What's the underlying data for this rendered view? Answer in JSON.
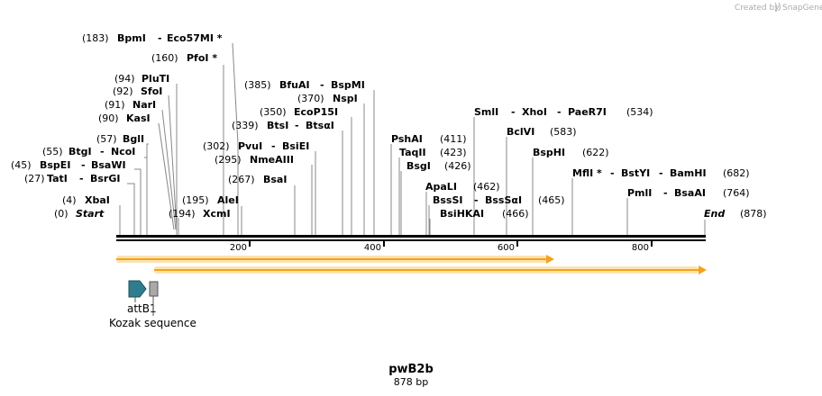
{
  "credit": {
    "text": "Created by",
    "brand": "SnapGene"
  },
  "sequence": {
    "name": "pwB2b",
    "length_text": "878 bp",
    "length": 878
  },
  "start_label": {
    "pos": "(0)",
    "name": "Start"
  },
  "end_label": {
    "name": "End",
    "pos": "(878)"
  },
  "ruler": {
    "ticks": [
      "200",
      "400",
      "600",
      "800"
    ]
  },
  "sites": [
    {
      "id": "xbai",
      "pos": "(4)",
      "names": [
        "XbaI"
      ]
    },
    {
      "id": "tati",
      "pos": "(27)",
      "names": [
        "TatI",
        "BsrGI"
      ]
    },
    {
      "id": "bspei",
      "pos": "(45)",
      "names": [
        "BspEI",
        "BsaWI"
      ]
    },
    {
      "id": "btgi",
      "pos": "(55)",
      "names": [
        "BtgI",
        "NcoI"
      ]
    },
    {
      "id": "bgli",
      "pos": "(57)",
      "names": [
        "BglI"
      ]
    },
    {
      "id": "kasi",
      "pos": "(90)",
      "names": [
        "KasI"
      ]
    },
    {
      "id": "nari",
      "pos": "(91)",
      "names": [
        "NarI"
      ]
    },
    {
      "id": "sfoi",
      "pos": "(92)",
      "names": [
        "SfoI"
      ]
    },
    {
      "id": "pluti",
      "pos": "(94)",
      "names": [
        "PluTI"
      ]
    },
    {
      "id": "pfoi",
      "pos": "(160)",
      "names": [
        "PfoI *"
      ]
    },
    {
      "id": "bpmi",
      "pos": "(183)",
      "names": [
        "BpmI",
        "Eco57MI *"
      ]
    },
    {
      "id": "xcmi",
      "pos": "(194)",
      "names": [
        "XcmI"
      ]
    },
    {
      "id": "alei",
      "pos": "(195)",
      "names": [
        "AleI"
      ]
    },
    {
      "id": "bsai",
      "pos": "(267)",
      "names": [
        "BsaI"
      ]
    },
    {
      "id": "nmeaiii",
      "pos": "(295)",
      "names": [
        "NmeAIII"
      ]
    },
    {
      "id": "pvui",
      "pos": "(302)",
      "names": [
        "PvuI",
        "BsiEI"
      ]
    },
    {
      "id": "btsi",
      "pos": "(339)",
      "names": [
        "BtsI",
        "BtsαI"
      ]
    },
    {
      "id": "ecop15i",
      "pos": "(350)",
      "names": [
        "EcoP15I"
      ]
    },
    {
      "id": "nspi",
      "pos": "(370)",
      "names": [
        "NspI"
      ]
    },
    {
      "id": "bfuai",
      "pos": "(385)",
      "names": [
        "BfuAI",
        "BspMI"
      ]
    },
    {
      "id": "pshai",
      "pos": "(411)",
      "names": [
        "PshAI"
      ]
    },
    {
      "id": "taqii",
      "pos": "(423)",
      "names": [
        "TaqII"
      ]
    },
    {
      "id": "bsgi",
      "pos": "(426)",
      "names": [
        "BsgI"
      ]
    },
    {
      "id": "apali",
      "pos": "(462)",
      "names": [
        "ApaLI"
      ]
    },
    {
      "id": "bsssi",
      "pos": "(465)",
      "names": [
        "BssSI",
        "BssSαI"
      ]
    },
    {
      "id": "bsihkai",
      "pos": "(466)",
      "names": [
        "BsiHKAI"
      ]
    },
    {
      "id": "smli",
      "pos": "(534)",
      "names": [
        "SmlI",
        "XhoI",
        "PaeR7I"
      ]
    },
    {
      "id": "bclvi",
      "pos": "(583)",
      "names": [
        "BclVI"
      ]
    },
    {
      "id": "bsphi",
      "pos": "(622)",
      "names": [
        "BspHI"
      ]
    },
    {
      "id": "mfli",
      "pos": "(682)",
      "names": [
        "MflI *",
        "BstYI",
        "BamHI"
      ]
    },
    {
      "id": "pmli",
      "pos": "(764)",
      "names": [
        "PmlI",
        "BsaAI"
      ]
    }
  ],
  "features": [
    {
      "id": "attb1",
      "name": "attB1",
      "color": "#2e7d8f"
    },
    {
      "id": "kozak",
      "name": "Kozak sequence",
      "color": "#a9a9a9"
    }
  ],
  "arrows": {
    "color": "#f4a21b",
    "glow": "#fbe3b3"
  }
}
